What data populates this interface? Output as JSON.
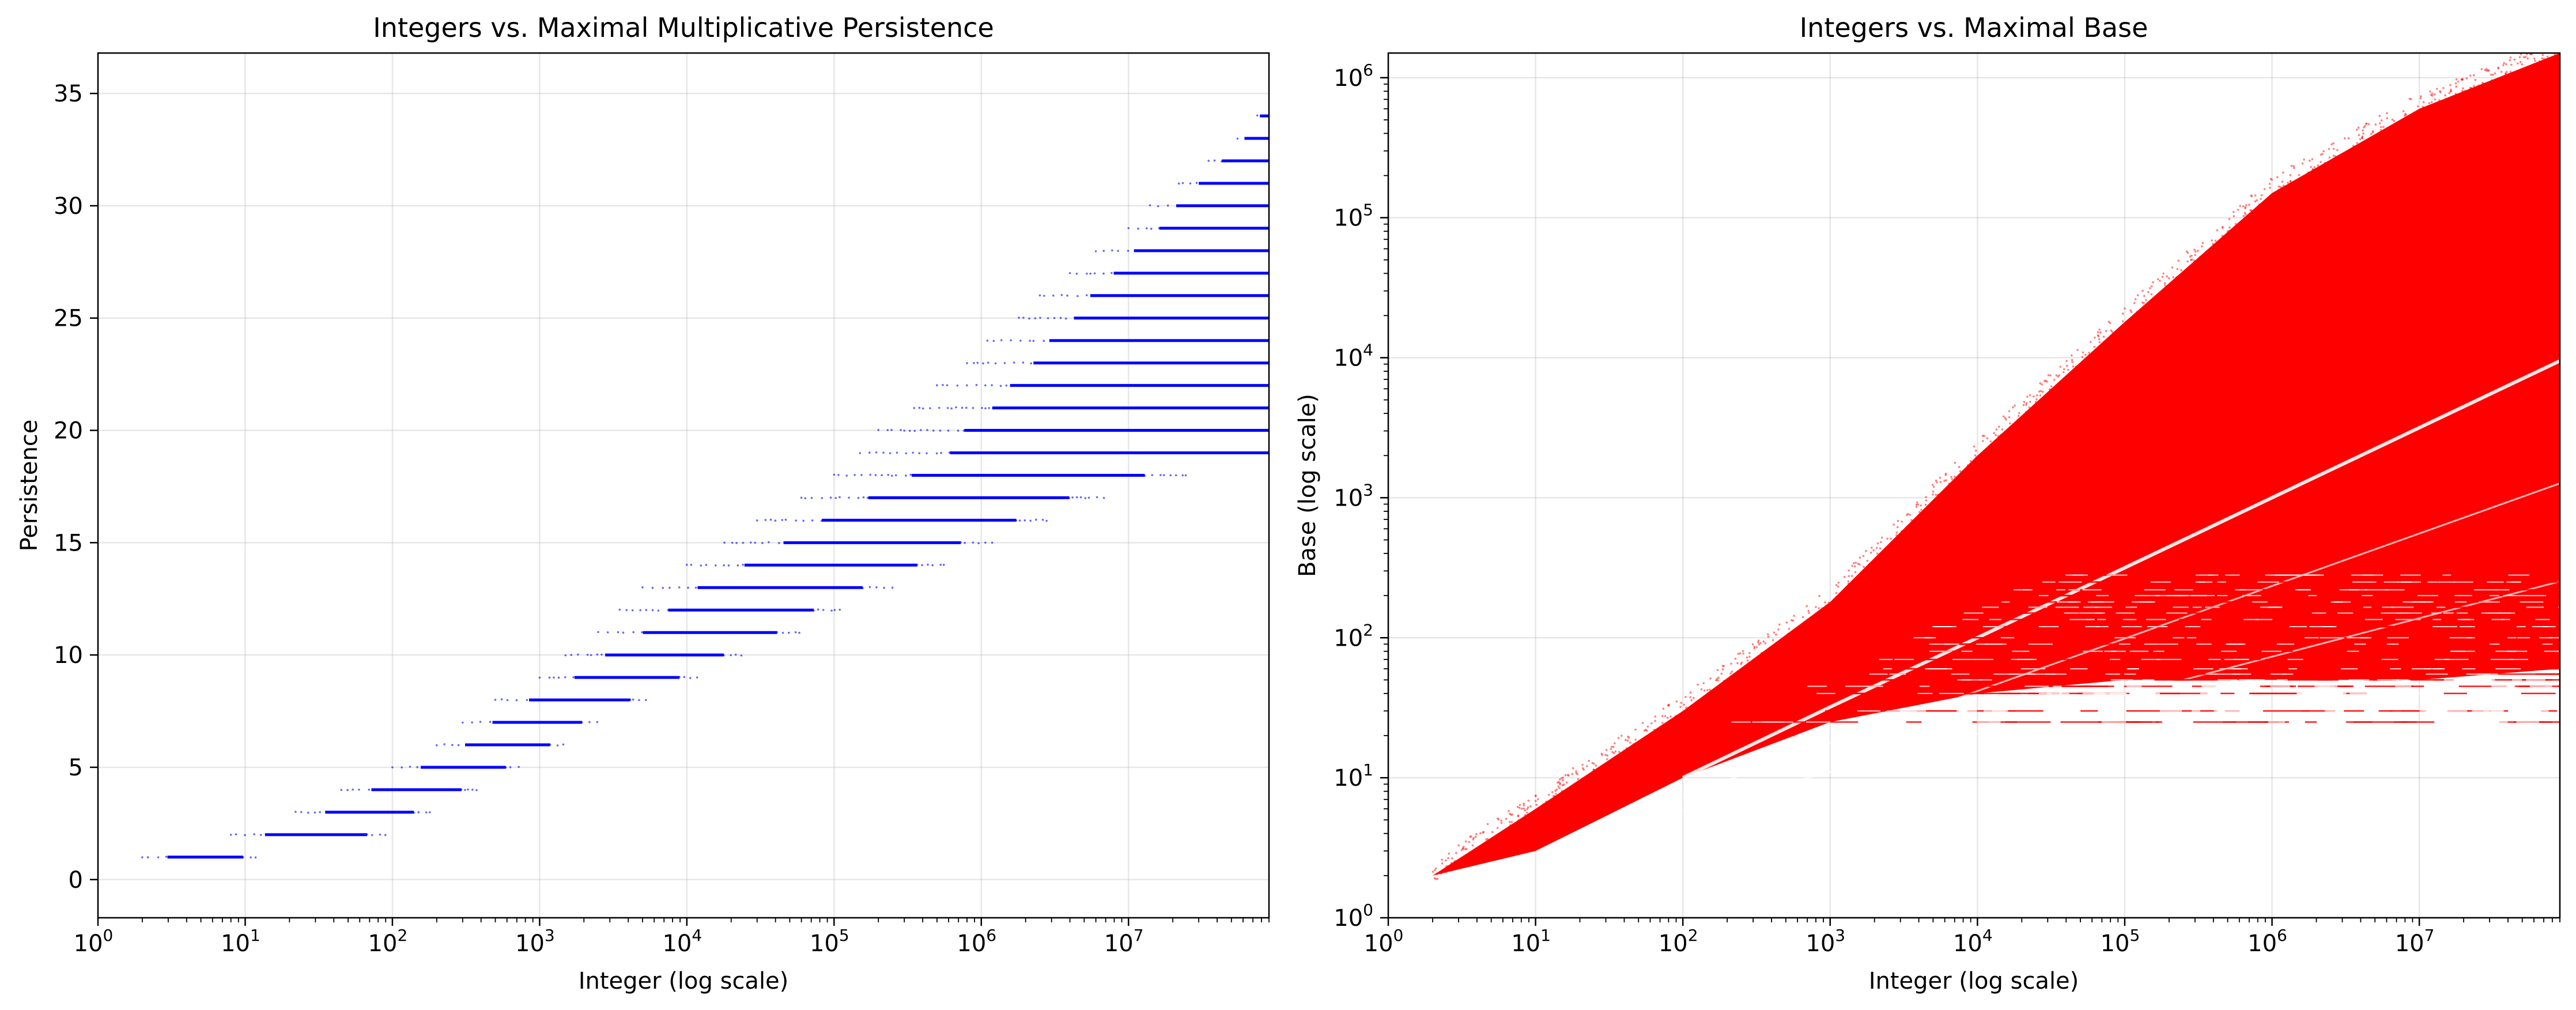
{
  "chart_data": [
    {
      "type": "scatter",
      "title": "Integers vs. Maximal Multiplicative Persistence",
      "xlabel": "Integer (log scale)",
      "ylabel": "Persistence",
      "xscale": "log",
      "xlim": [
        1,
        90000000
      ],
      "ylim": [
        -1.7,
        36.8
      ],
      "grid": true,
      "color": "#0000ff",
      "x_ticks": [
        {
          "base": "10",
          "exp": "0",
          "value": 1
        },
        {
          "base": "10",
          "exp": "1",
          "value": 10
        },
        {
          "base": "10",
          "exp": "2",
          "value": 100
        },
        {
          "base": "10",
          "exp": "3",
          "value": 1000
        },
        {
          "base": "10",
          "exp": "4",
          "value": 10000
        },
        {
          "base": "10",
          "exp": "5",
          "value": 100000
        },
        {
          "base": "10",
          "exp": "6",
          "value": 1000000
        },
        {
          "base": "10",
          "exp": "7",
          "value": 10000000
        }
      ],
      "y_ticks": [
        {
          "label": "0",
          "value": 0
        },
        {
          "label": "5",
          "value": 5
        },
        {
          "label": "10",
          "value": 10
        },
        {
          "label": "15",
          "value": 15
        },
        {
          "label": "20",
          "value": 20
        },
        {
          "label": "25",
          "value": 25
        },
        {
          "label": "30",
          "value": 30
        },
        {
          "label": "35",
          "value": 35
        }
      ],
      "bands": [
        {
          "persistence": 1,
          "x_start": 2,
          "x_end": 12
        },
        {
          "persistence": 2,
          "x_start": 8,
          "x_end": 90
        },
        {
          "persistence": 3,
          "x_start": 22,
          "x_end": 180
        },
        {
          "persistence": 4,
          "x_start": 45,
          "x_end": 380
        },
        {
          "persistence": 5,
          "x_start": 100,
          "x_end": 750
        },
        {
          "persistence": 6,
          "x_start": 200,
          "x_end": 1500
        },
        {
          "persistence": 7,
          "x_start": 300,
          "x_end": 2500
        },
        {
          "persistence": 8,
          "x_start": 500,
          "x_end": 5500
        },
        {
          "persistence": 9,
          "x_start": 1000,
          "x_end": 12000
        },
        {
          "persistence": 10,
          "x_start": 1500,
          "x_end": 25000
        },
        {
          "persistence": 11,
          "x_start": 2500,
          "x_end": 60000
        },
        {
          "persistence": 12,
          "x_start": 3500,
          "x_end": 110000
        },
        {
          "persistence": 13,
          "x_start": 5000,
          "x_end": 250000
        },
        {
          "persistence": 14,
          "x_start": 10000,
          "x_end": 600000
        },
        {
          "persistence": 15,
          "x_start": 18000,
          "x_end": 1200000
        },
        {
          "persistence": 16,
          "x_start": 30000,
          "x_end": 3000000
        },
        {
          "persistence": 17,
          "x_start": 60000,
          "x_end": 7000000
        },
        {
          "persistence": 18,
          "x_start": 100000,
          "x_end": 25000000
        },
        {
          "persistence": 19,
          "x_start": 150000,
          "x_end": 90000000
        },
        {
          "persistence": 20,
          "x_start": 200000,
          "x_end": 90000000
        },
        {
          "persistence": 21,
          "x_start": 350000,
          "x_end": 90000000
        },
        {
          "persistence": 22,
          "x_start": 500000,
          "x_end": 90000000
        },
        {
          "persistence": 23,
          "x_start": 800000,
          "x_end": 90000000
        },
        {
          "persistence": 24,
          "x_start": 1100000,
          "x_end": 90000000
        },
        {
          "persistence": 25,
          "x_start": 1800000,
          "x_end": 90000000
        },
        {
          "persistence": 26,
          "x_start": 2500000,
          "x_end": 90000000
        },
        {
          "persistence": 27,
          "x_start": 4000000,
          "x_end": 90000000
        },
        {
          "persistence": 28,
          "x_start": 6000000,
          "x_end": 90000000
        },
        {
          "persistence": 29,
          "x_start": 10000000,
          "x_end": 90000000
        },
        {
          "persistence": 30,
          "x_start": 14000000,
          "x_end": 90000000
        },
        {
          "persistence": 31,
          "x_start": 22000000,
          "x_end": 90000000
        },
        {
          "persistence": 32,
          "x_start": 35000000,
          "x_end": 90000000
        },
        {
          "persistence": 33,
          "x_start": 55000000,
          "x_end": 90000000
        },
        {
          "persistence": 34,
          "x_start": 75000000,
          "x_end": 90000000
        }
      ]
    },
    {
      "type": "scatter",
      "title": "Integers vs. Maximal Base",
      "xlabel": "Integer (log scale)",
      "ylabel": "Base (log scale)",
      "xscale": "log",
      "yscale": "log",
      "xlim": [
        1,
        90000000
      ],
      "ylim": [
        1,
        1500000
      ],
      "grid": true,
      "color": "#ff0000",
      "x_ticks": [
        {
          "base": "10",
          "exp": "0",
          "value": 1
        },
        {
          "base": "10",
          "exp": "1",
          "value": 10
        },
        {
          "base": "10",
          "exp": "2",
          "value": 100
        },
        {
          "base": "10",
          "exp": "3",
          "value": 1000
        },
        {
          "base": "10",
          "exp": "4",
          "value": 10000
        },
        {
          "base": "10",
          "exp": "5",
          "value": 100000
        },
        {
          "base": "10",
          "exp": "6",
          "value": 1000000
        },
        {
          "base": "10",
          "exp": "7",
          "value": 10000000
        }
      ],
      "y_ticks": [
        {
          "base": "10",
          "exp": "0",
          "value": 1
        },
        {
          "base": "10",
          "exp": "1",
          "value": 10
        },
        {
          "base": "10",
          "exp": "2",
          "value": 100
        },
        {
          "base": "10",
          "exp": "3",
          "value": 1000
        },
        {
          "base": "10",
          "exp": "4",
          "value": 10000
        },
        {
          "base": "10",
          "exp": "5",
          "value": 100000
        },
        {
          "base": "10",
          "exp": "6",
          "value": 1000000
        }
      ],
      "upper_envelope": [
        [
          2,
          2
        ],
        [
          10,
          6
        ],
        [
          100,
          30
        ],
        [
          1000,
          180
        ],
        [
          10000,
          2000
        ],
        [
          100000,
          18000
        ],
        [
          1000000,
          150000
        ],
        [
          10000000,
          600000
        ],
        [
          90000000,
          1500000
        ]
      ],
      "lower_envelope": [
        [
          2,
          2
        ],
        [
          10,
          3
        ],
        [
          100,
          10
        ],
        [
          1000,
          25
        ],
        [
          10000,
          40
        ],
        [
          100000,
          50
        ],
        [
          1000000,
          50
        ],
        [
          10000000,
          50
        ],
        [
          90000000,
          60
        ]
      ],
      "sqrt_boundary": [
        [
          100,
          10
        ],
        [
          1000,
          32
        ],
        [
          10000,
          100
        ],
        [
          100000,
          316
        ],
        [
          1000000,
          1000
        ],
        [
          90000000,
          9487
        ]
      ]
    }
  ]
}
